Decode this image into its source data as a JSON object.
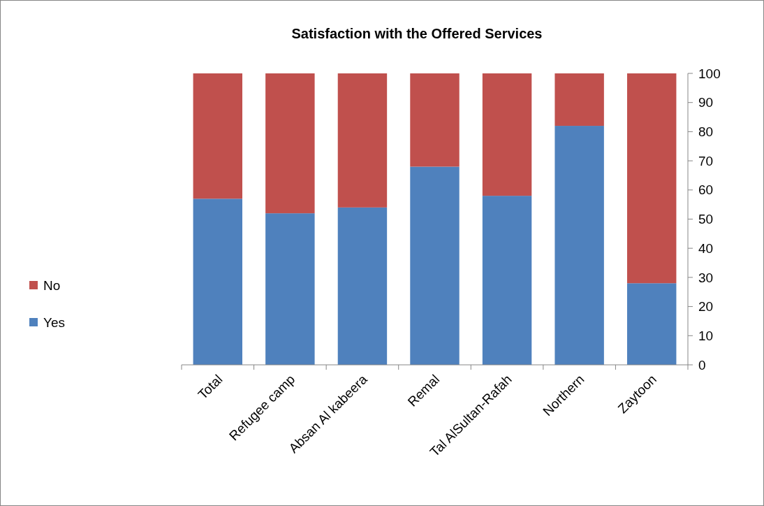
{
  "chart_data": {
    "type": "bar",
    "title": "Satisfaction with the Offered Services",
    "stacked": true,
    "categories": [
      "Total",
      "Refugee camp",
      "Absan Al kabeera",
      "Remal",
      "Tal AlSultan-Rafah",
      "Northern",
      "Zaytoon"
    ],
    "series": [
      {
        "name": "Yes",
        "color": "#4f81bd",
        "values": [
          57,
          52,
          54,
          68,
          58,
          82,
          28
        ]
      },
      {
        "name": "No",
        "color": "#c0504d",
        "values": [
          43,
          48,
          46,
          32,
          42,
          18,
          72
        ]
      }
    ],
    "ylim": [
      0,
      100
    ],
    "yticks": [
      0,
      10,
      20,
      30,
      40,
      50,
      60,
      70,
      80,
      90,
      100
    ],
    "grid": false,
    "legend": "left"
  }
}
